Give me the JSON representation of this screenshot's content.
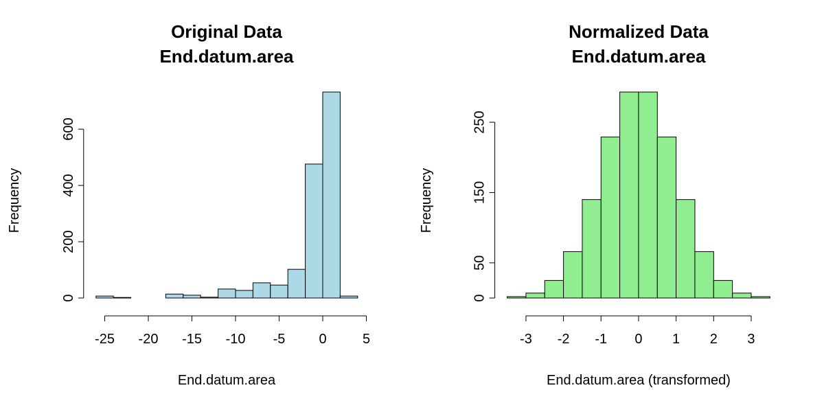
{
  "chart_data": [
    {
      "type": "histogram",
      "title": "Original Data",
      "subtitle": "End.datum.area",
      "x_label": "End.datum.area",
      "y_label": "Frequency",
      "color": "#add8e6",
      "bins": [
        -26,
        -24,
        -22,
        -20,
        -18,
        -16,
        -14,
        -12,
        -10,
        -8,
        -6,
        -4,
        -2,
        0,
        2,
        4
      ],
      "values": [
        7,
        2,
        0,
        0,
        14,
        10,
        3,
        32,
        27,
        54,
        46,
        102,
        476,
        732,
        7
      ],
      "xlim": [
        -26,
        5
      ],
      "xticks": [
        -25,
        -20,
        -15,
        -10,
        -5,
        0,
        5
      ],
      "ylim": [
        0,
        732
      ],
      "yticks": [
        0,
        200,
        400,
        600
      ]
    },
    {
      "type": "histogram",
      "title": "Normalized Data",
      "subtitle": "End.datum.area",
      "x_label": "End.datum.area (transformed)",
      "y_label": "Frequency",
      "color": "#90ee90",
      "bins": [
        -3.5,
        -3,
        -2.5,
        -2,
        -1.5,
        -1,
        -0.5,
        0,
        0.5,
        1,
        1.5,
        2,
        2.5,
        3,
        3.5
      ],
      "values": [
        2,
        7,
        25,
        66,
        140,
        229,
        293,
        293,
        229,
        140,
        66,
        25,
        7,
        2
      ],
      "xlim": [
        -3.5,
        3.5
      ],
      "xticks": [
        -3,
        -2,
        -1,
        0,
        1,
        2,
        3
      ],
      "ylim": [
        0,
        293
      ],
      "yticks": [
        0,
        50,
        150,
        250
      ]
    }
  ]
}
